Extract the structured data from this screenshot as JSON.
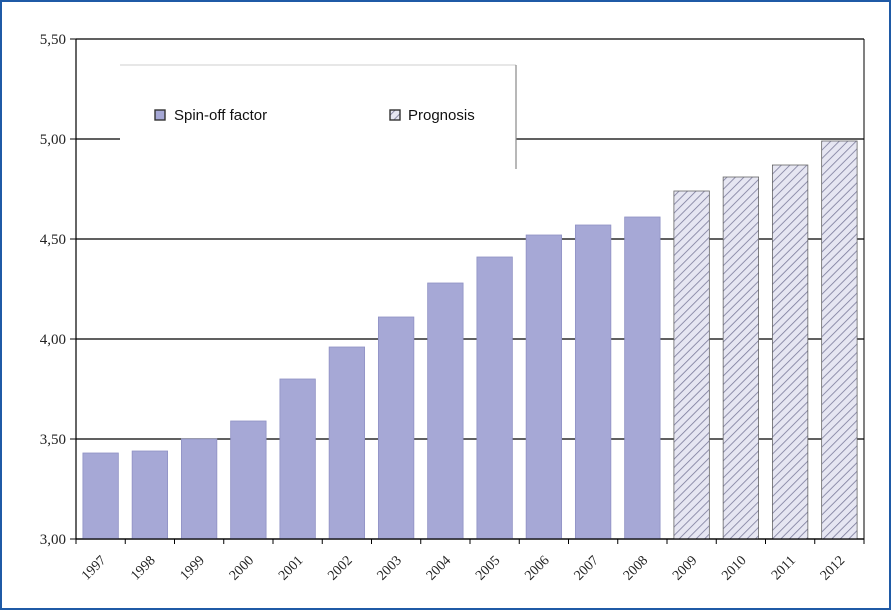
{
  "chart_data": {
    "type": "bar",
    "categories": [
      "1997",
      "1998",
      "1999",
      "2000",
      "2001",
      "2002",
      "2003",
      "2004",
      "2005",
      "2006",
      "2007",
      "2008",
      "2009",
      "2010",
      "2011",
      "2012"
    ],
    "series": [
      {
        "name": "Spin-off factor",
        "values": [
          3.43,
          3.44,
          3.5,
          3.59,
          3.8,
          3.96,
          4.11,
          4.28,
          4.41,
          4.52,
          4.57,
          4.61,
          null,
          null,
          null,
          null
        ],
        "fill": "#a6a8d6",
        "pattern": "solid"
      },
      {
        "name": "Prognosis",
        "values": [
          null,
          null,
          null,
          null,
          null,
          null,
          null,
          null,
          null,
          null,
          null,
          null,
          4.74,
          4.81,
          4.87,
          4.99
        ],
        "fill": "#e6e6f2",
        "pattern": "diagonal-hatch"
      }
    ],
    "ylim": [
      3.0,
      5.5
    ],
    "yticks": [
      3.0,
      3.5,
      4.0,
      4.5,
      5.0,
      5.5
    ],
    "ytick_labels": [
      "3,00",
      "3,50",
      "4,00",
      "4,50",
      "5,00",
      "5,50"
    ],
    "xlabel": "",
    "ylabel": "",
    "title": "",
    "grid": "horizontal major lines",
    "legend_position": "top-left inside plot",
    "frame_color": "#1f5aa6"
  }
}
